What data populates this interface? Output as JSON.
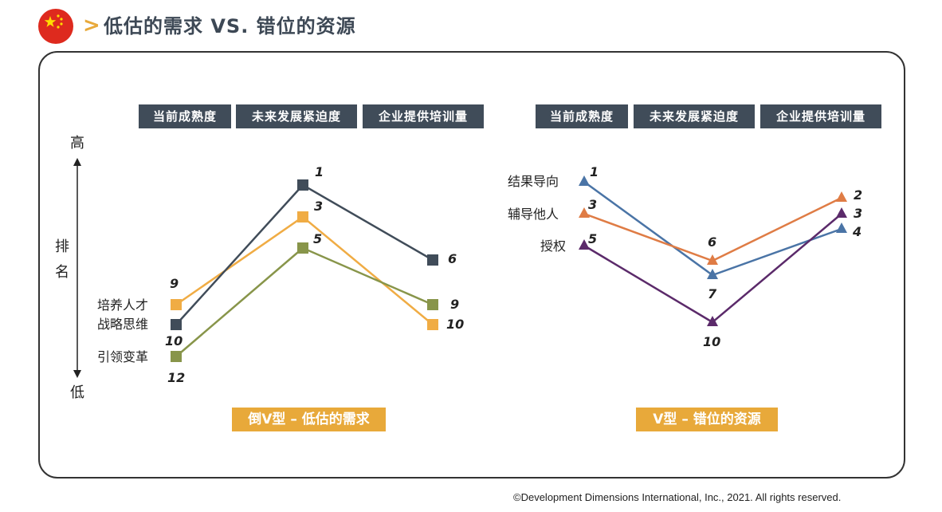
{
  "header": {
    "title": "低估的需求 VS. 错位的资源",
    "flag_icon": "china-flag-icon",
    "chevron_icon": "chevron-right-icon",
    "accent": "#e8a93a"
  },
  "axis": {
    "high": "高",
    "rank1": "排",
    "rank2": "名",
    "low": "低"
  },
  "footer": "©Development Dimensions International, Inc., 2021. All rights reserved.",
  "chart_data": [
    {
      "type": "line",
      "title": "倒V型 – 低估的需求",
      "categories": [
        "当前成熟度",
        "未来发展紧迫度",
        "企业提供培训量"
      ],
      "y_axis": "排名（高→低，1为最高）",
      "marker": "square",
      "series": [
        {
          "name": "培养人才",
          "color": "#f0ac44",
          "values": [
            9,
            3,
            10
          ],
          "labels": [
            "9",
            "3",
            "10"
          ]
        },
        {
          "name": "战略思维",
          "color": "#404c59",
          "values": [
            10,
            1,
            6
          ],
          "labels": [
            "10",
            "1",
            "6"
          ]
        },
        {
          "name": "引领变革",
          "color": "#88954a",
          "values": [
            12,
            5,
            9
          ],
          "labels": [
            "12",
            "5",
            "9"
          ]
        }
      ]
    },
    {
      "type": "line",
      "title": "V型 – 错位的资源",
      "categories": [
        "当前成熟度",
        "未来发展紧迫度",
        "企业提供培训量"
      ],
      "y_axis": "排名（高→低，1为最高）",
      "marker": "triangle",
      "series": [
        {
          "name": "结果导向",
          "color": "#4a74a6",
          "values": [
            1,
            7,
            4
          ],
          "labels": [
            "1",
            "7",
            "4"
          ]
        },
        {
          "name": "辅导他人",
          "color": "#df7c45",
          "values": [
            3,
            6,
            2
          ],
          "labels": [
            "3",
            "6",
            "2"
          ]
        },
        {
          "name": "授权",
          "color": "#5b2a6a",
          "values": [
            5,
            10,
            3
          ],
          "labels": [
            "5",
            "10",
            "3"
          ]
        }
      ]
    }
  ]
}
